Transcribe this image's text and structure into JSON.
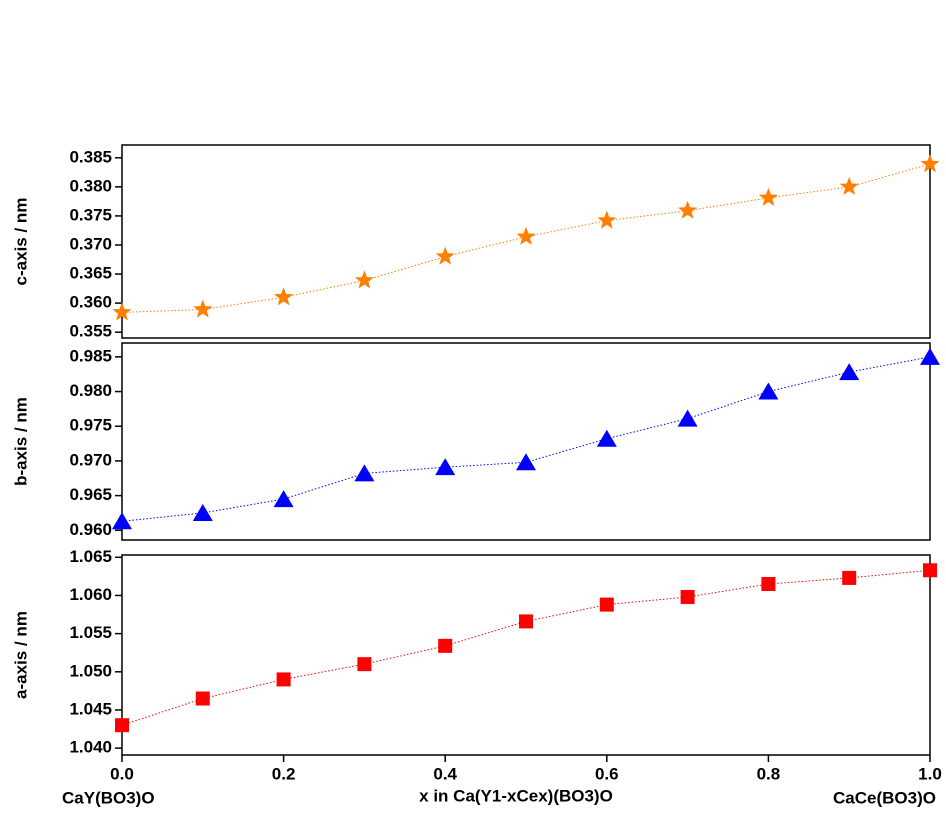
{
  "chart_data": [
    {
      "type": "line",
      "ylabel": "c-axis / nm",
      "x": [
        0,
        0.1,
        0.2,
        0.3,
        0.4,
        0.5,
        0.6,
        0.7,
        0.8,
        0.9,
        1.0
      ],
      "xlim": [
        0,
        1
      ],
      "ylim": [
        0.354,
        0.3872
      ],
      "yticks": [
        {
          "value": 0.355,
          "label": "0.355"
        },
        {
          "value": 0.36,
          "label": "0.360"
        },
        {
          "value": 0.365,
          "label": "0.365"
        },
        {
          "value": 0.37,
          "label": "0.370"
        },
        {
          "value": 0.375,
          "label": "0.375"
        },
        {
          "value": 0.38,
          "label": "0.380"
        },
        {
          "value": 0.385,
          "label": "0.385"
        }
      ],
      "series": [
        {
          "color": "#ff8000",
          "marker": "star",
          "values": [
            0.3584,
            0.3589,
            0.361,
            0.3639,
            0.368,
            0.3714,
            0.3742,
            0.3759,
            0.3781,
            0.38,
            0.3839
          ]
        }
      ]
    },
    {
      "type": "line",
      "ylabel": "b-axis / nm",
      "x": [
        0,
        0.1,
        0.2,
        0.3,
        0.4,
        0.5,
        0.6,
        0.7,
        0.8,
        0.9,
        1.0
      ],
      "xlim": [
        0,
        1
      ],
      "ylim": [
        0.9586,
        0.987
      ],
      "yticks": [
        {
          "value": 0.96,
          "label": "0.960"
        },
        0.965,
        {
          "value": 0.97,
          "label": "0.970"
        },
        0.975,
        {
          "value": 0.98,
          "label": "0.980"
        },
        0.985
      ],
      "series": [
        {
          "color": "#0000ff",
          "marker": "triangle",
          "values": [
            0.9613,
            0.9625,
            0.9645,
            0.9682,
            0.9691,
            0.9698,
            0.9732,
            0.9761,
            0.98,
            0.9828,
            0.985
          ]
        }
      ]
    },
    {
      "type": "line",
      "ylabel": "a-axis / nm",
      "xlabel": "x in Ca(Y1-xCex)(BO3)O",
      "annotations": [
        "CaY(BO3)O",
        "CaCe(BO3)O"
      ],
      "x": [
        0,
        0.1,
        0.2,
        0.3,
        0.4,
        0.5,
        0.6,
        0.7,
        0.8,
        0.9,
        1.0
      ],
      "xlim": [
        0,
        1
      ],
      "xticks": [
        {
          "value": 0,
          "label": "0.0"
        },
        0.2,
        0.4,
        0.6,
        0.8,
        {
          "value": 1,
          "label": "1.0"
        }
      ],
      "ylim": [
        1.0391,
        1.0653
      ],
      "yticks": [
        {
          "value": 1.04,
          "label": "1.040"
        },
        1.045,
        {
          "value": 1.05,
          "label": "1.050"
        },
        1.055,
        {
          "value": 1.06,
          "label": "1.060"
        },
        1.065
      ],
      "series": [
        {
          "color": "#ff0000",
          "marker": "square",
          "values": [
            1.043,
            1.0465,
            1.049,
            1.051,
            1.0534,
            1.0566,
            1.0588,
            1.0598,
            1.0615,
            1.0623,
            1.0633
          ]
        }
      ]
    }
  ]
}
